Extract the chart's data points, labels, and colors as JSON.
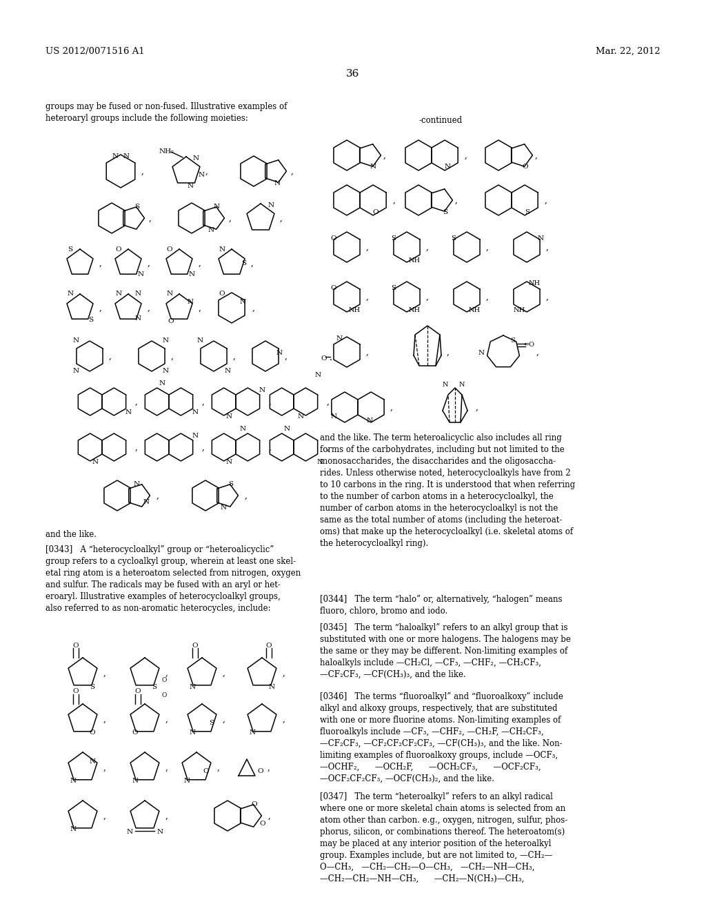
{
  "page_number": "36",
  "patent_number": "US 2012/0071516 A1",
  "patent_date": "Mar. 22, 2012",
  "background_color": "#ffffff",
  "text_color": "#000000",
  "header_left": "US 2012/0071516 A1",
  "header_right": "Mar. 22, 2012",
  "continued_label": "-continued",
  "left_intro_text": "groups may be fused or non-fused. Illustrative examples of\nheteroaryl groups include the following moieties:",
  "and_the_like": "and the like.",
  "para_0343": "[0343]   A “heterocycloalkyl” group or “heteroalicyclic”\ngroup refers to a cycloalkyl group, wherein at least one skel-\netal ring atom is a heteroatom selected from nitrogen, oxygen\nand sulfur. The radicals may be fused with an aryl or het-\neroaryl. Illustrative examples of heterocycloalkyl groups,\nalso referred to as non-aromatic heterocycles, include:",
  "para_0343_cont": "and the like. The term heteroalicyclic also includes all ring\nforms of the carbohydrates, including but not limited to the\nmonosaccharides, the disaccharides and the oligosaccha-\nrides. Unless otherwise noted, heterocycloalkyls have from 2\nto 10 carbons in the ring. It is understood that when referring\nto the number of carbon atoms in a heterocycloalkyl, the\nnumber of carbon atoms in the heterocycloalkyl is not the\nsame as the total number of atoms (including the heteroat-\noms) that make up the heterocycloalkyl (i.e. skeletal atoms of\nthe heterocycloalkyl ring).",
  "para_0344": "[0344]   The term “halo” or, alternatively, “halogen” means\nfluoro, chloro, bromo and iodo.",
  "para_0345": "[0345]   The term “haloalkyl” refers to an alkyl group that is\nsubstituted with one or more halogens. The halogens may be\nthe same or they may be different. Non-limiting examples of\nhaloalkyls include —CH₂Cl, —CF₃, —CHF₂, —CH₂CF₃,\n—CF₂CF₃, —CF(CH₃)₃, and the like.",
  "para_0346": "[0346]   The terms “fluoroalkyl” and “fluoroalkoxy” include\nalkyl and alkoxy groups, respectively, that are substituted\nwith one or more fluorine atoms. Non-limiting examples of\nfluoroalkyls include —CF₃, —CHF₂, —CH₂F, —CH₂CF₃,\n—CF₂CF₃, —CF₂CF₂CF₂CF₃, —CF(CH₃)₃, and the like. Non-\nlimiting examples of fluoroalkoxy groups, include —OCF₃,\n—OCHF₂,      —OCH₂F,      —OCH₂CF₃,      —OCF₂CF₃,\n—OCF₂CF₂CF₃, —OCF(CH₃)₂, and the like.",
  "para_0347": "[0347]   The term “heteroalkyl” refers to an alkyl radical\nwhere one or more skeletal chain atoms is selected from an\natom other than carbon. e.g., oxygen, nitrogen, sulfur, phos-\nphorus, silicon, or combinations thereof. The heteroatom(s)\nmay be placed at any interior position of the heteroalkyl\ngroup. Examples include, but are not limited to, —CH₂—\nO—CH₃,   —CH₂—CH₂—O—CH₃,   —CH₂—NH—CH₃,\n—CH₂—CH₂—NH—CH₃,      —CH₂—N(CH₃)—CH₃,"
}
